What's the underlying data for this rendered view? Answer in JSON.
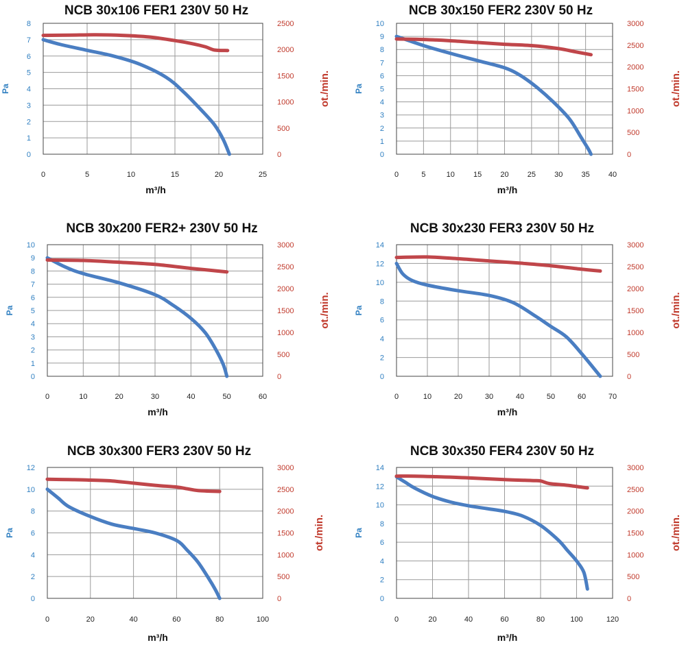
{
  "colors": {
    "pressure": "#4a7ec2",
    "speed": "#c0464a",
    "grid": "#9a9a9a",
    "frame": "#444444"
  },
  "chart_data": [
    {
      "type": "line",
      "title": "NCB 30x106 FER1 230V 50 Hz",
      "xlabel": "m³/h",
      "ylabel": "Pa",
      "y2label": "ot./min.",
      "xlim": [
        0,
        25
      ],
      "xticks": [
        0,
        5,
        10,
        15,
        20,
        25
      ],
      "ylim": [
        0,
        8
      ],
      "yticks": [
        0,
        1,
        2,
        3,
        4,
        5,
        6,
        7,
        8
      ],
      "y2lim": [
        0,
        2500
      ],
      "y2ticks": [
        0,
        500,
        1000,
        1500,
        2000,
        2500
      ],
      "grid": true,
      "series": [
        {
          "axis": "left",
          "x": [
            0,
            2,
            5,
            8,
            11,
            14,
            16,
            18,
            19.5,
            20.5,
            21.2
          ],
          "y": [
            7.0,
            6.7,
            6.35,
            6.0,
            5.5,
            4.7,
            3.8,
            2.7,
            1.8,
            0.9,
            0.0
          ]
        },
        {
          "axis": "right",
          "x": [
            0,
            3,
            6,
            9,
            12,
            15,
            17,
            18.5,
            19.5,
            21
          ],
          "y": [
            2270,
            2275,
            2280,
            2270,
            2240,
            2170,
            2110,
            2050,
            1990,
            1980
          ]
        }
      ]
    },
    {
      "type": "line",
      "title": "NCB 30x150 FER2 230V 50 Hz",
      "xlabel": "m³/h",
      "ylabel": "Pa",
      "y2label": "ot./min.",
      "xlim": [
        0,
        40
      ],
      "xticks": [
        0,
        5,
        10,
        15,
        20,
        25,
        30,
        35,
        40
      ],
      "ylim": [
        0,
        10
      ],
      "yticks": [
        0,
        1,
        2,
        3,
        4,
        5,
        6,
        7,
        8,
        9,
        10
      ],
      "y2lim": [
        0,
        3000
      ],
      "y2ticks": [
        0,
        500,
        1000,
        1500,
        2000,
        2500,
        3000
      ],
      "grid": true,
      "series": [
        {
          "axis": "left",
          "x": [
            0,
            5,
            10,
            15,
            20,
            23,
            26,
            29,
            32,
            34,
            35.5,
            36
          ],
          "y": [
            9.0,
            8.3,
            7.7,
            7.15,
            6.6,
            6.0,
            5.1,
            4.0,
            2.7,
            1.4,
            0.4,
            0.0
          ]
        },
        {
          "axis": "right",
          "x": [
            0,
            5,
            10,
            15,
            20,
            25,
            30,
            33,
            36
          ],
          "y": [
            2640,
            2630,
            2600,
            2560,
            2520,
            2490,
            2420,
            2350,
            2280
          ]
        }
      ]
    },
    {
      "type": "line",
      "title": "NCB 30x200 FER2+ 230V 50 Hz",
      "xlabel": "m³/h",
      "ylabel": "Pa",
      "y2label": "ot./min.",
      "xlim": [
        0,
        60
      ],
      "xticks": [
        0,
        10,
        20,
        30,
        40,
        50,
        60
      ],
      "ylim": [
        0,
        10
      ],
      "yticks": [
        0,
        1,
        2,
        3,
        4,
        5,
        6,
        7,
        8,
        9,
        10
      ],
      "y2lim": [
        0,
        3000
      ],
      "y2ticks": [
        0,
        500,
        1000,
        1500,
        2000,
        2500,
        3000
      ],
      "grid": true,
      "series": [
        {
          "axis": "left",
          "x": [
            0,
            5,
            10,
            20,
            30,
            35,
            40,
            44,
            47,
            49,
            50
          ],
          "y": [
            9.0,
            8.3,
            7.8,
            7.1,
            6.2,
            5.4,
            4.4,
            3.3,
            2.0,
            0.9,
            0.0
          ]
        },
        {
          "axis": "right",
          "x": [
            0,
            10,
            20,
            30,
            40,
            45,
            50
          ],
          "y": [
            2650,
            2640,
            2600,
            2550,
            2460,
            2420,
            2380
          ]
        }
      ]
    },
    {
      "type": "line",
      "title": "NCB 30x230 FER3 230V 50 Hz",
      "xlabel": "m³/h",
      "ylabel": "Pa",
      "y2label": "ot./min.",
      "xlim": [
        0,
        70
      ],
      "xticks": [
        0,
        10,
        20,
        30,
        40,
        50,
        60,
        70
      ],
      "ylim": [
        0,
        14
      ],
      "yticks": [
        0,
        2,
        4,
        6,
        8,
        10,
        12,
        14
      ],
      "y2lim": [
        0,
        3000
      ],
      "y2ticks": [
        0,
        500,
        1000,
        1500,
        2000,
        2500,
        3000
      ],
      "grid": true,
      "series": [
        {
          "axis": "left",
          "x": [
            0,
            2,
            5,
            10,
            20,
            30,
            38,
            45,
            50,
            55,
            60,
            66
          ],
          "y": [
            12.0,
            10.9,
            10.2,
            9.7,
            9.1,
            8.6,
            7.8,
            6.4,
            5.3,
            4.2,
            2.4,
            0.0
          ]
        },
        {
          "axis": "right",
          "x": [
            0,
            10,
            20,
            30,
            40,
            50,
            60,
            66
          ],
          "y": [
            2710,
            2720,
            2680,
            2630,
            2580,
            2520,
            2440,
            2400
          ]
        }
      ]
    },
    {
      "type": "line",
      "title": "NCB 30x300 FER3 230V 50 Hz",
      "xlabel": "m³/h",
      "ylabel": "Pa",
      "y2label": "ot./min.",
      "xlim": [
        0,
        100
      ],
      "xticks": [
        0,
        20,
        40,
        60,
        80,
        100
      ],
      "ylim": [
        0,
        12
      ],
      "yticks": [
        0,
        2,
        4,
        6,
        8,
        10,
        12
      ],
      "y2lim": [
        0,
        3000
      ],
      "y2ticks": [
        0,
        500,
        1000,
        1500,
        2000,
        2500,
        3000
      ],
      "grid": true,
      "series": [
        {
          "axis": "left",
          "x": [
            0,
            5,
            10,
            20,
            30,
            40,
            50,
            60,
            65,
            70,
            75,
            78,
            80
          ],
          "y": [
            10.0,
            9.2,
            8.4,
            7.5,
            6.8,
            6.4,
            6.0,
            5.3,
            4.4,
            3.3,
            1.8,
            0.8,
            0.0
          ]
        },
        {
          "axis": "right",
          "x": [
            0,
            10,
            20,
            30,
            40,
            50,
            60,
            65,
            70,
            80
          ],
          "y": [
            2730,
            2720,
            2710,
            2690,
            2640,
            2590,
            2550,
            2510,
            2470,
            2450
          ]
        }
      ]
    },
    {
      "type": "line",
      "title": "NCB 30x350 FER4 230V 50 Hz",
      "xlabel": "m³/h",
      "ylabel": "Pa",
      "y2label": "ot./min.",
      "xlim": [
        0,
        120
      ],
      "xticks": [
        0,
        20,
        40,
        60,
        80,
        100,
        120
      ],
      "ylim": [
        0,
        14
      ],
      "yticks": [
        0,
        2,
        4,
        6,
        8,
        10,
        12,
        14
      ],
      "y2lim": [
        0,
        3000
      ],
      "y2ticks": [
        0,
        500,
        1000,
        1500,
        2000,
        2500,
        3000
      ],
      "grid": true,
      "series": [
        {
          "axis": "left",
          "x": [
            0,
            5,
            10,
            20,
            30,
            40,
            50,
            60,
            70,
            80,
            90,
            95,
            100,
            104,
            106
          ],
          "y": [
            13.0,
            12.4,
            11.8,
            10.9,
            10.3,
            9.9,
            9.6,
            9.3,
            8.8,
            7.8,
            6.2,
            5.1,
            4.0,
            2.8,
            1.0
          ]
        },
        {
          "axis": "right",
          "x": [
            0,
            10,
            20,
            40,
            60,
            75,
            80,
            85,
            95,
            106
          ],
          "y": [
            2800,
            2800,
            2790,
            2760,
            2720,
            2700,
            2690,
            2630,
            2590,
            2530
          ]
        }
      ]
    }
  ]
}
